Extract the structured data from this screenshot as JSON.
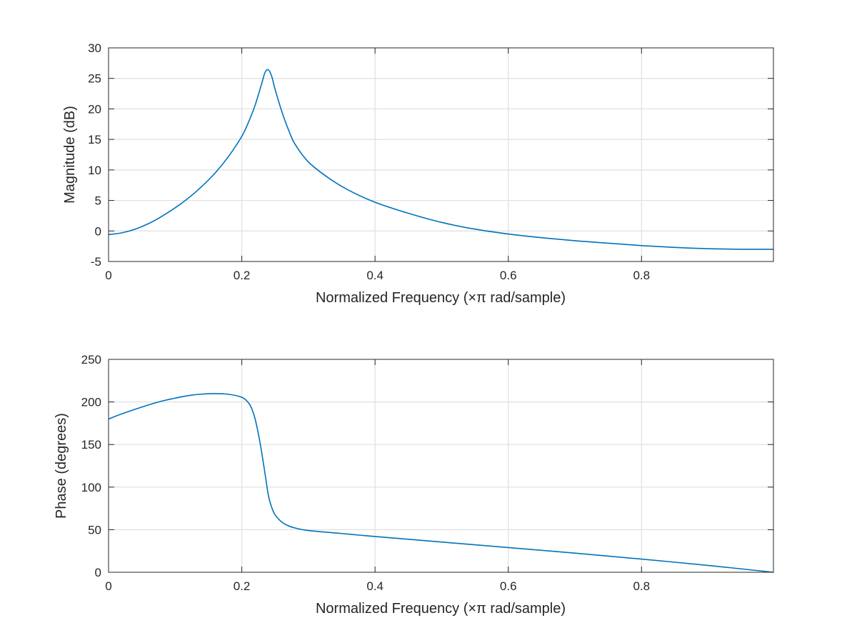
{
  "chart_data": [
    {
      "type": "line",
      "id": "magnitude",
      "title": "",
      "xlabel": "Normalized Frequency (×π rad/sample)",
      "ylabel": "Magnitude (dB)",
      "xlim": [
        0,
        0.998
      ],
      "ylim": [
        -5,
        30
      ],
      "grid": true,
      "x_ticks": [
        0,
        0.2,
        0.4,
        0.6,
        0.8
      ],
      "x_tick_labels": [
        "0",
        "0.2",
        "0.4",
        "0.6",
        "0.8"
      ],
      "y_ticks": [
        -5,
        0,
        5,
        10,
        15,
        20,
        25,
        30
      ],
      "y_tick_labels": [
        "-5",
        "0",
        "5",
        "10",
        "15",
        "20",
        "25",
        "30"
      ],
      "line_color": "#0072bd",
      "series": [
        {
          "name": "Magnitude",
          "x": [
            0,
            0.02,
            0.04,
            0.06,
            0.08,
            0.1,
            0.12,
            0.14,
            0.16,
            0.18,
            0.2,
            0.21,
            0.22,
            0.23,
            0.235,
            0.24,
            0.245,
            0.25,
            0.26,
            0.27,
            0.28,
            0.3,
            0.33,
            0.36,
            0.4,
            0.45,
            0.5,
            0.55,
            0.6,
            0.65,
            0.7,
            0.75,
            0.8,
            0.85,
            0.9,
            0.95,
            0.998
          ],
          "values": [
            -0.6,
            -0.3,
            0.3,
            1.2,
            2.4,
            3.8,
            5.4,
            7.3,
            9.5,
            12.2,
            15.5,
            17.8,
            20.6,
            24.2,
            26.0,
            26.4,
            25.3,
            23.2,
            19.6,
            16.6,
            14.2,
            11.3,
            8.7,
            6.7,
            4.7,
            2.9,
            1.4,
            0.3,
            -0.5,
            -1.1,
            -1.6,
            -2.0,
            -2.4,
            -2.7,
            -2.9,
            -3.0,
            -3.0
          ]
        }
      ]
    },
    {
      "type": "line",
      "id": "phase",
      "title": "",
      "xlabel": "Normalized Frequency (×π rad/sample)",
      "ylabel": "Phase (degrees)",
      "xlim": [
        0,
        0.998
      ],
      "ylim": [
        0,
        250
      ],
      "grid": true,
      "x_ticks": [
        0,
        0.2,
        0.4,
        0.6,
        0.8
      ],
      "x_tick_labels": [
        "0",
        "0.2",
        "0.4",
        "0.6",
        "0.8"
      ],
      "y_ticks": [
        0,
        50,
        100,
        150,
        200,
        250
      ],
      "y_tick_labels": [
        "0",
        "50",
        "100",
        "150",
        "200",
        "250"
      ],
      "line_color": "#0072bd",
      "series": [
        {
          "name": "Phase",
          "x": [
            0,
            0.02,
            0.05,
            0.08,
            0.1,
            0.12,
            0.14,
            0.16,
            0.18,
            0.2,
            0.21,
            0.215,
            0.22,
            0.225,
            0.23,
            0.235,
            0.24,
            0.245,
            0.25,
            0.26,
            0.27,
            0.28,
            0.3,
            0.35,
            0.4,
            0.5,
            0.6,
            0.7,
            0.8,
            0.9,
            0.998
          ],
          "values": [
            180,
            186,
            194,
            201,
            204.5,
            207.5,
            209.2,
            209.8,
            209,
            205.5,
            199,
            192,
            180,
            162,
            140,
            115,
            90,
            76,
            67.5,
            59,
            54.5,
            52,
            49,
            45.5,
            42,
            35.5,
            29,
            22.5,
            15.5,
            8,
            0
          ]
        }
      ]
    }
  ]
}
